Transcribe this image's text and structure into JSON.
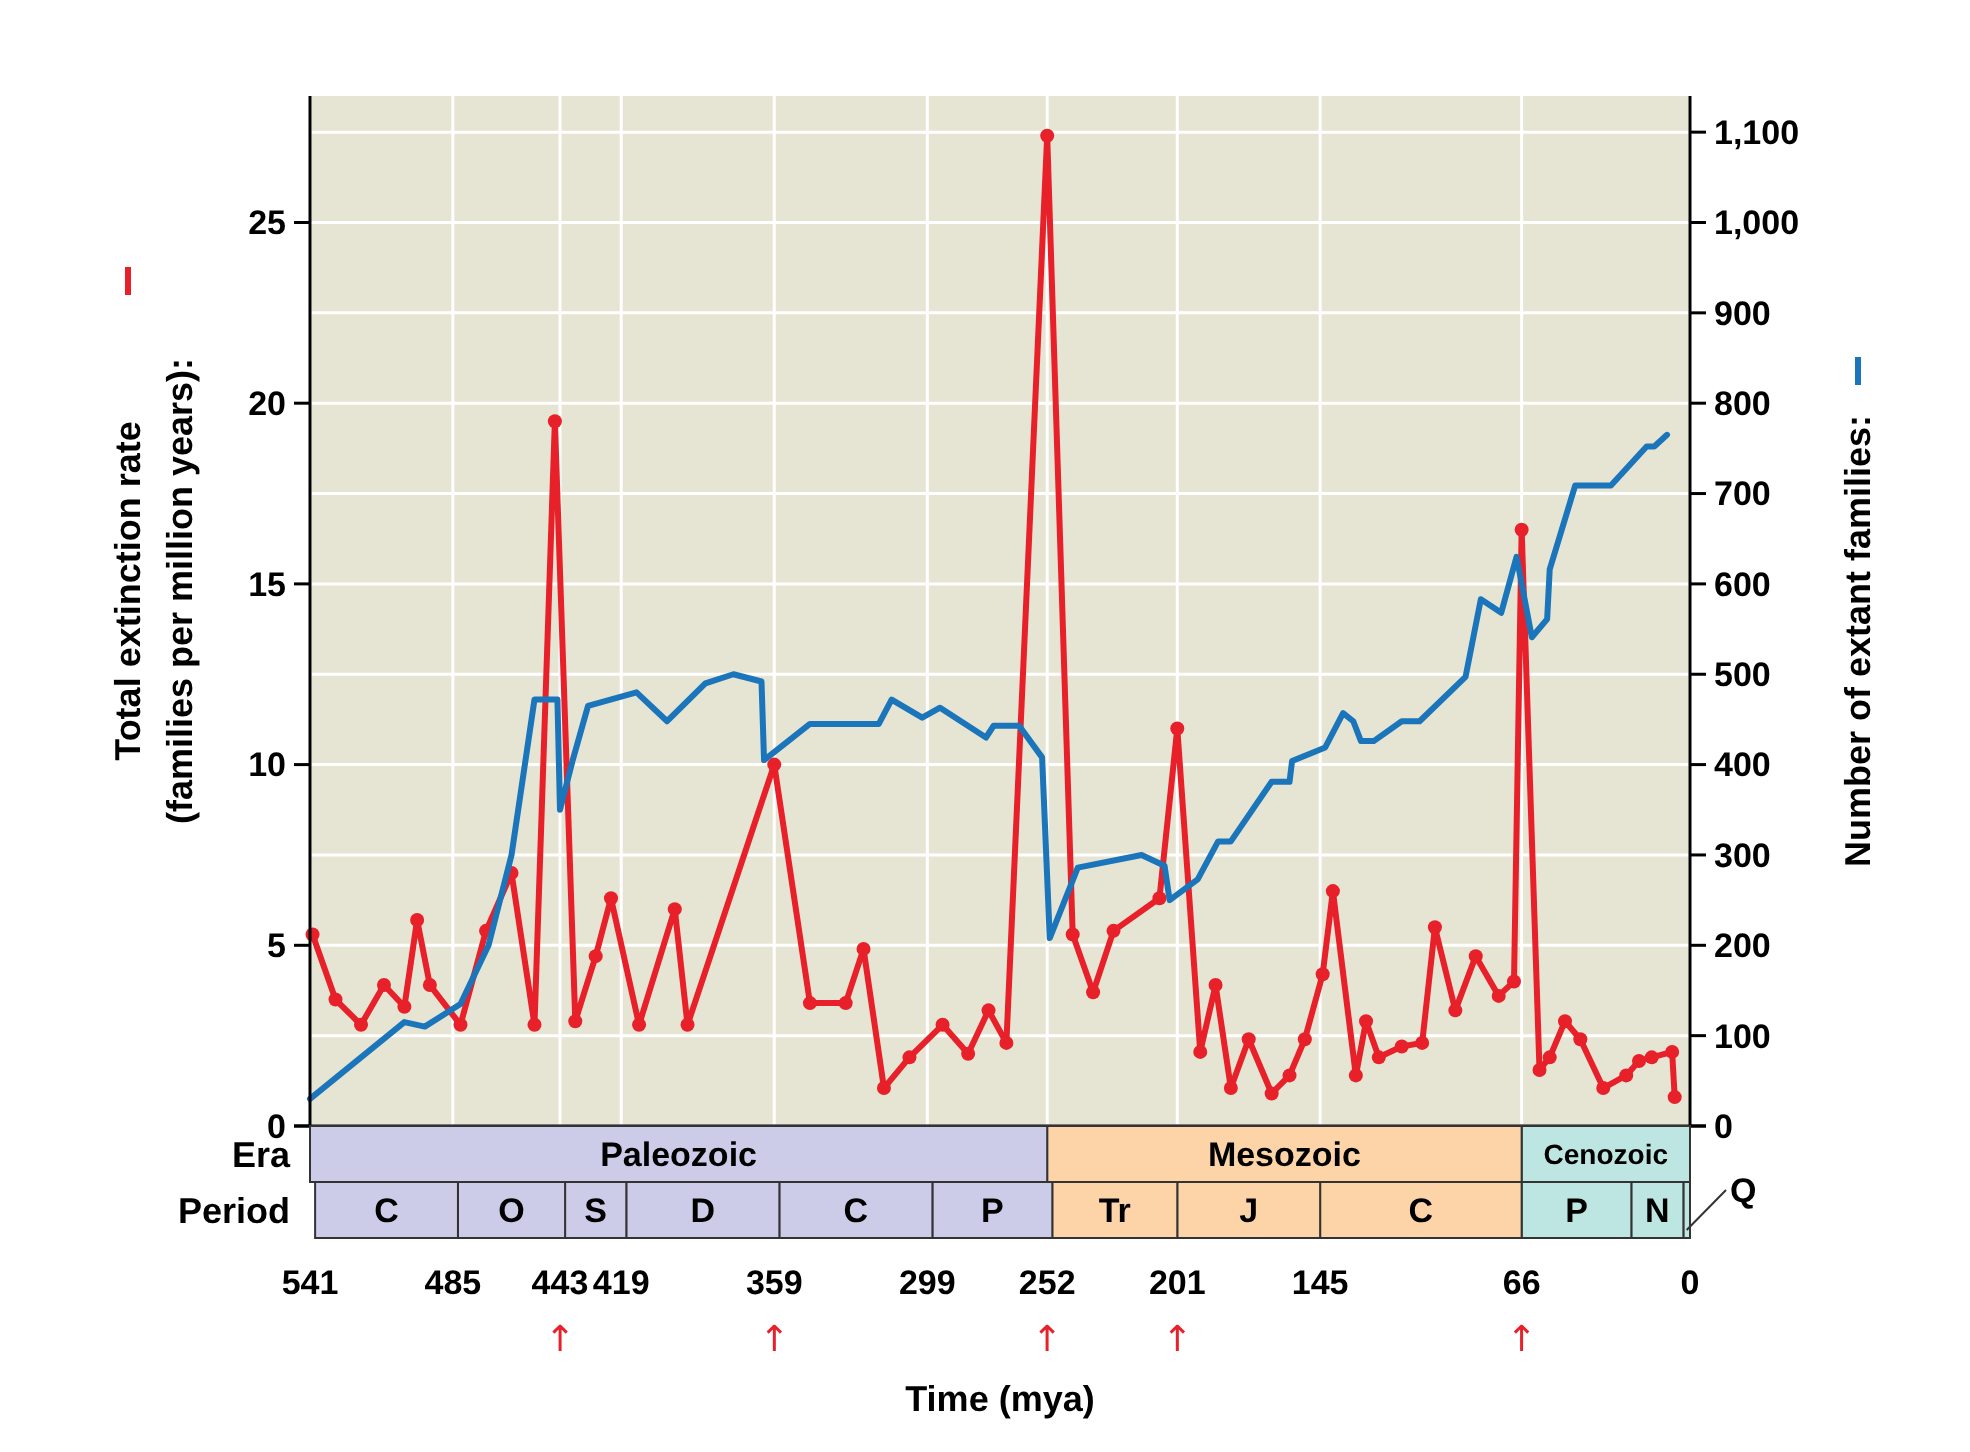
{
  "chart_data": [
    {
      "type": "line",
      "ylabel": "Total extinction rate\n(families per million years):",
      "y2label": "Number of extant families:",
      "xlim": [
        541,
        0
      ],
      "xticks": [
        541,
        485,
        443,
        419,
        359,
        299,
        252,
        201,
        145,
        66,
        0
      ],
      "ylim": [
        0,
        28.5
      ],
      "yticks": [
        0,
        5,
        10,
        15,
        20,
        25
      ],
      "y2lim": [
        0,
        1140
      ],
      "y2ticks": [
        0,
        100,
        200,
        300,
        400,
        500,
        600,
        700,
        800,
        900,
        {
          "value": 1000,
          "label": "1,000"
        },
        {
          "value": 1100,
          "label": "1,100"
        }
      ],
      "grid": true,
      "tick_labels": "y",
      "series": [
        {
          "color": "#e8202a",
          "marker": "circle",
          "x": [
            540,
            531,
            521,
            512,
            504,
            499,
            494,
            482,
            472,
            462,
            453,
            445,
            437,
            429,
            423,
            412,
            398,
            393,
            359,
            345,
            331,
            324,
            316,
            306,
            293,
            283,
            275,
            268,
            252,
            242,
            234,
            226,
            208,
            201,
            192,
            186,
            180,
            173,
            164,
            157,
            151,
            144,
            140,
            131,
            127,
            122,
            113,
            105,
            100,
            92,
            84,
            75,
            69,
            66,
            59,
            55,
            49,
            43,
            34,
            25,
            20,
            15,
            7,
            6
          ],
          "values": [
            5.3,
            3.5,
            2.8,
            3.9,
            3.3,
            5.7,
            3.9,
            2.8,
            5.4,
            7.0,
            2.8,
            19.5,
            2.9,
            4.7,
            6.3,
            2.8,
            6.0,
            2.8,
            10.0,
            3.4,
            3.4,
            4.9,
            1.05,
            1.9,
            2.8,
            2.0,
            3.2,
            2.3,
            27.4,
            5.3,
            3.7,
            5.4,
            6.3,
            11.0,
            2.05,
            3.9,
            1.05,
            2.4,
            0.9,
            1.4,
            2.4,
            4.2,
            6.5,
            1.4,
            2.9,
            1.9,
            2.2,
            2.3,
            5.5,
            3.2,
            4.7,
            3.6,
            4.0,
            16.5,
            1.55,
            1.9,
            2.9,
            2.4,
            1.05,
            1.4,
            1.8,
            1.9,
            2.05,
            0.8
          ]
        },
        {
          "color": "#1a75bb",
          "marker": "none",
          "axis": "y2",
          "x": [
            541,
            504,
            496,
            482,
            471,
            462,
            453,
            444,
            443,
            438,
            432,
            413,
            401,
            386,
            375,
            364,
            363,
            345,
            318,
            313,
            301,
            294,
            276,
            273,
            263,
            254,
            251,
            240,
            215,
            206,
            204,
            193,
            185,
            180,
            164,
            157,
            156,
            143,
            136,
            132,
            129,
            124,
            113,
            106,
            88,
            82,
            74,
            68,
            62,
            56,
            55,
            45,
            31,
            17,
            14,
            9
          ],
          "values": [
            30,
            115,
            110,
            135,
            200,
            300,
            472,
            472,
            350,
            405,
            465,
            480,
            448,
            490,
            500,
            492,
            405,
            445,
            445,
            472,
            452,
            463,
            430,
            443,
            443,
            408,
            208,
            286,
            300,
            288,
            250,
            273,
            315,
            315,
            381,
            381,
            404,
            419,
            457,
            448,
            426,
            426,
            448,
            448,
            497,
            583,
            568,
            630,
            541,
            561,
            616,
            709,
            709,
            752,
            752,
            765
          ]
        }
      ]
    },
    {
      "type": "bar",
      "orientation": "horizontal",
      "stacked": true,
      "categories": [
        "Era",
        "Period"
      ],
      "xlabel": "Time (mya)",
      "xlim": [
        541,
        0
      ],
      "xticks": [
        541,
        485,
        443,
        419,
        359,
        299,
        252,
        201,
        145,
        66,
        0
      ],
      "annotations": [
        {
          "text": "↑",
          "x": 443,
          "y": "Period"
        },
        {
          "text": "↑",
          "x": 359,
          "y": "Period"
        },
        {
          "text": "↑",
          "x": 252,
          "y": "Period"
        },
        {
          "text": "↑",
          "x": 201,
          "y": "Period"
        },
        {
          "text": "↑",
          "x": 66,
          "y": "Period"
        }
      ],
      "series": [
        {
          "name": "Cenozoic",
          "color": "#bde5e2",
          "values": [
            66,
            null
          ]
        },
        {
          "name": "Mesozoic",
          "color": "#fcd4a8",
          "values": [
            186,
            null
          ]
        },
        {
          "name": "Paleozoic",
          "color": "#cccbe8",
          "values": [
            289,
            null
          ]
        },
        {
          "name": "Q",
          "color": "#bde5e2",
          "values": [
            null,
            2.6
          ]
        },
        {
          "name": "N",
          "color": "#bde5e2",
          "values": [
            null,
            20.4
          ]
        },
        {
          "name": "P",
          "color": "#bde5e2",
          "values": [
            null,
            43
          ]
        },
        {
          "name": "C",
          "color": "#fcd4a8",
          "values": [
            null,
            79
          ]
        },
        {
          "name": "J",
          "color": "#fcd4a8",
          "values": [
            null,
            56
          ]
        },
        {
          "name": "Tr",
          "color": "#fcd4a8",
          "values": [
            null,
            49
          ]
        },
        {
          "name": "P",
          "color": "#cccbe8",
          "values": [
            null,
            47
          ]
        },
        {
          "name": "C",
          "color": "#cccbe8",
          "values": [
            null,
            60
          ]
        },
        {
          "name": "D",
          "color": "#cccbe8",
          "values": [
            null,
            60
          ]
        },
        {
          "name": "S",
          "color": "#cccbe8",
          "values": [
            null,
            24
          ]
        },
        {
          "name": "O",
          "color": "#cccbe8",
          "values": [
            null,
            42
          ]
        },
        {
          "name": "C",
          "color": "#cccbe8",
          "values": [
            null,
            56
          ]
        }
      ]
    }
  ]
}
